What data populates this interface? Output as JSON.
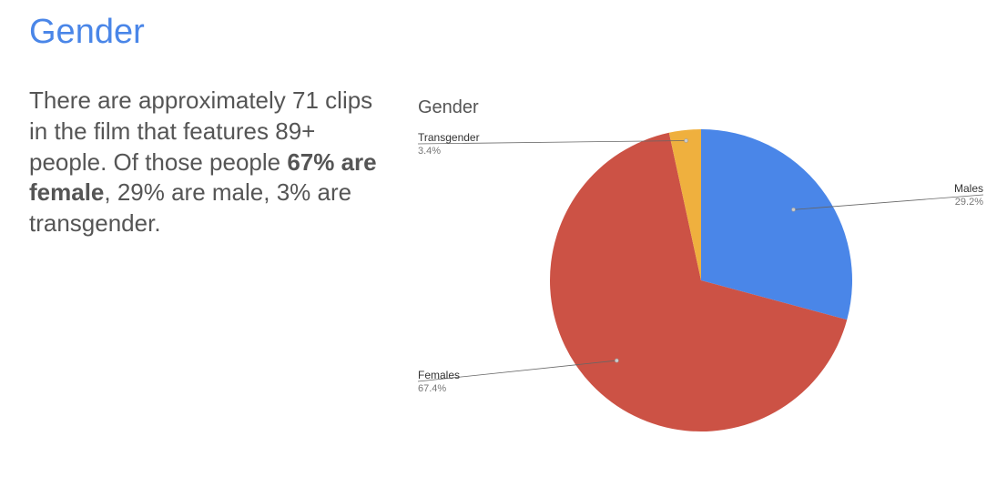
{
  "slide": {
    "title": "Gender",
    "body_pre": "There are approximately 71 clips in the film that features 89+ people. Of those people ",
    "body_bold": "67% are female",
    "body_post": ", 29% are male, 3% are transgender."
  },
  "chart_data": {
    "type": "pie",
    "title": "Gender",
    "slices": [
      {
        "name": "Males",
        "value": 29.2,
        "value_label": "29.2%",
        "color": "#4a86e8"
      },
      {
        "name": "Females",
        "value": 67.4,
        "value_label": "67.4%",
        "color": "#cc5245"
      },
      {
        "name": "Transgender",
        "value": 3.4,
        "value_label": "3.4%",
        "color": "#efb03e"
      }
    ],
    "start": "top",
    "direction": "clockwise",
    "legend": "labeled",
    "grid": false
  }
}
